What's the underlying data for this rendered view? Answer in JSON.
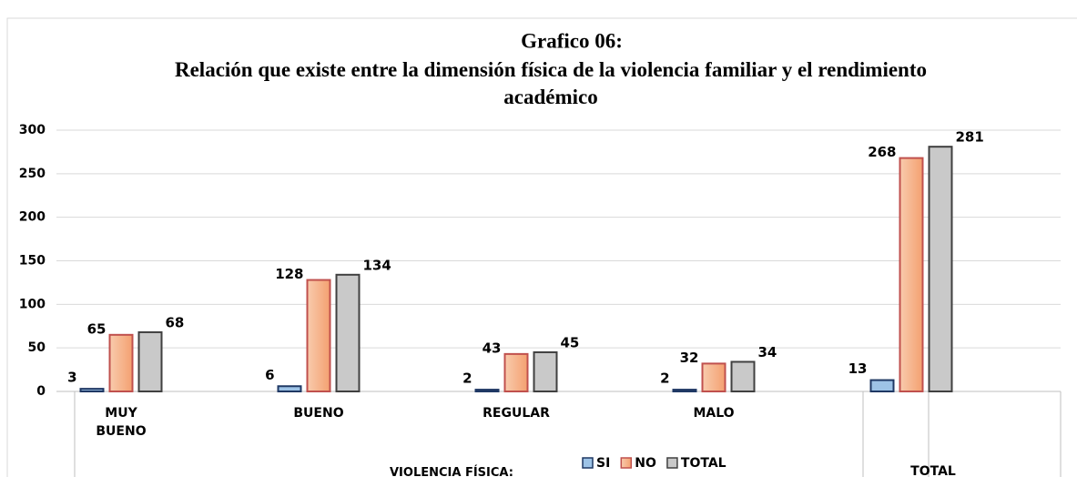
{
  "chart_data": {
    "type": "bar",
    "title": "Grafico 06:",
    "subtitle": "Relación que existe entre la dimensión física de la violencia familiar y el rendimiento académico",
    "categories": [
      "MUY BUENO",
      "BUENO",
      "REGULAR",
      "MALO",
      "TOTAL"
    ],
    "x_label": "VIOLENCIA FÍSICA:",
    "series": [
      {
        "name": "SI",
        "color": "#9dc3e6",
        "values": [
          3,
          6,
          2,
          2,
          13
        ]
      },
      {
        "name": "NO",
        "color": "#f4b183",
        "values": [
          65,
          128,
          43,
          32,
          268
        ]
      },
      {
        "name": "TOTAL",
        "color": "#c9c9c9",
        "values": [
          68,
          134,
          45,
          34,
          281
        ]
      }
    ],
    "ylim": [
      0,
      300
    ],
    "yticks": [
      0,
      50,
      100,
      150,
      200,
      250,
      300
    ],
    "grid": true
  }
}
